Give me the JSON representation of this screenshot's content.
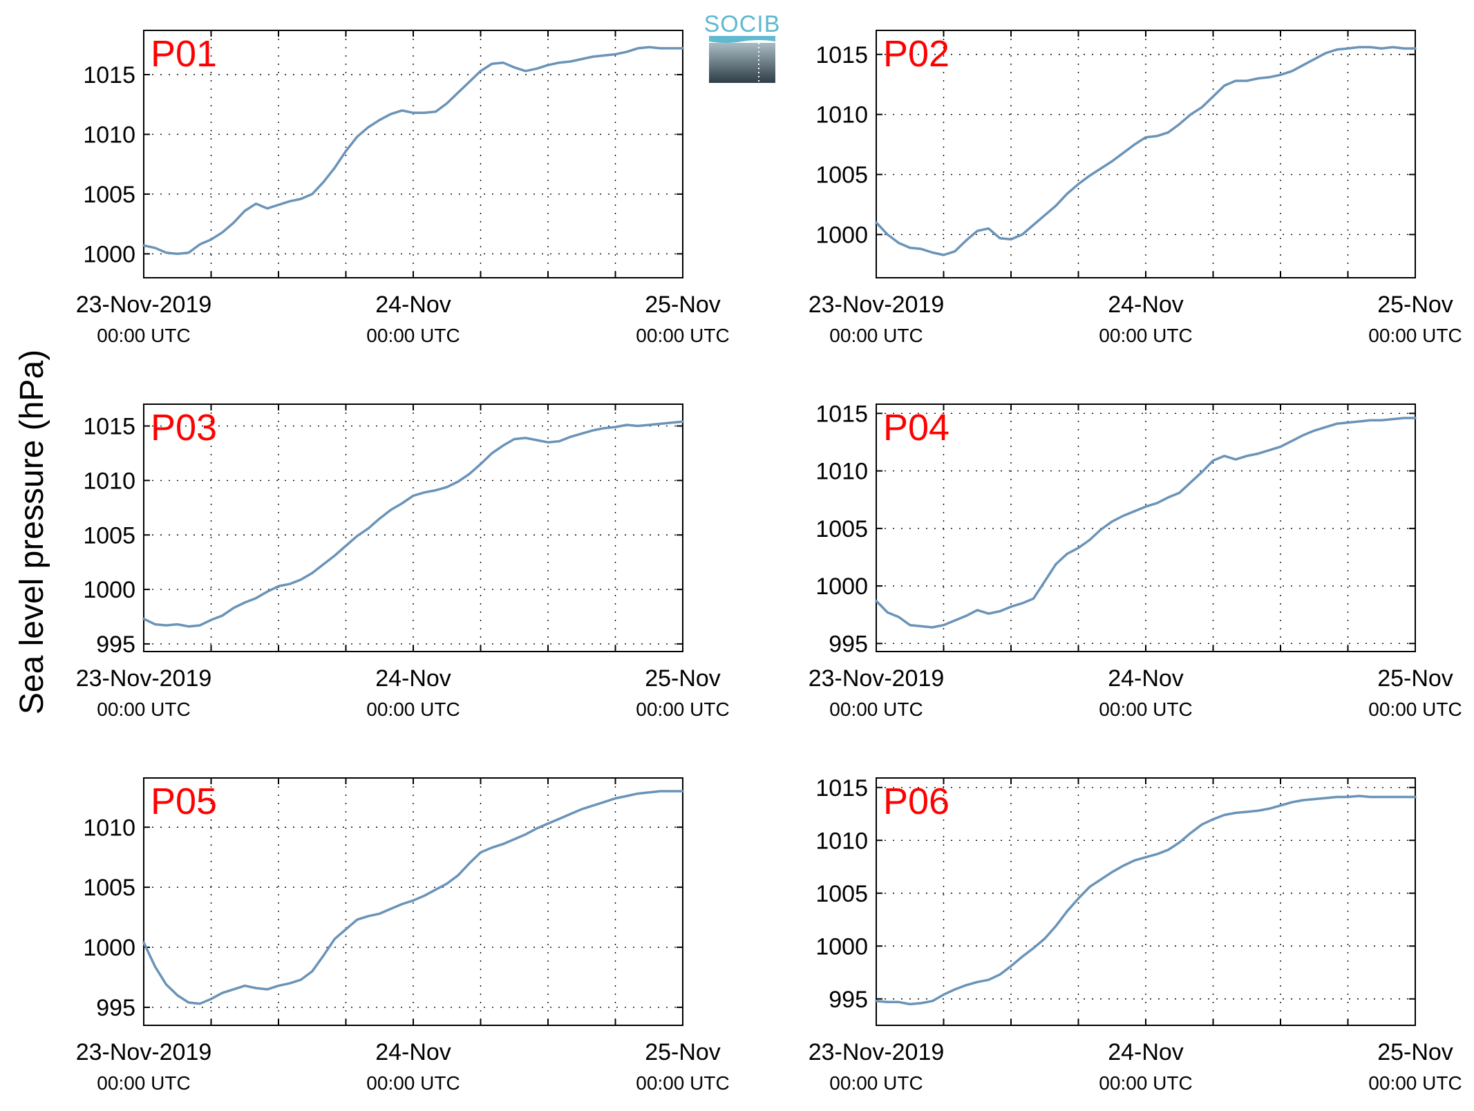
{
  "figure": {
    "ylabel": "Sea level pressure (hPa)",
    "logo_text": "SOCIB",
    "colors": {
      "line": "#6a93b8",
      "panel_label": "#ff0000",
      "axes": "#000000",
      "grid": "#000000"
    }
  },
  "chart_data": [
    {
      "type": "line",
      "panel_label": "P01",
      "grid": "dotted",
      "xlim": [
        "2019-11-23 00:00",
        "2019-11-25 00:00"
      ],
      "xticks": [
        {
          "label": "23-Nov-2019",
          "sublabel": "00:00 UTC",
          "value": 0
        },
        {
          "label": "24-Nov",
          "sublabel": "00:00 UTC",
          "value": 24
        },
        {
          "label": "25-Nov",
          "sublabel": "00:00 UTC",
          "value": 48
        }
      ],
      "ylim": [
        998,
        1018.7
      ],
      "yticks": [
        1000,
        1005,
        1010,
        1015
      ],
      "series": [
        {
          "x": [
            0,
            1,
            2,
            3,
            4,
            5,
            6,
            7,
            8,
            9,
            10,
            11,
            12,
            13,
            14,
            15,
            16,
            17,
            18,
            19,
            20,
            21,
            22,
            23,
            24,
            25,
            26,
            27,
            28,
            29,
            30,
            31,
            32,
            33,
            34,
            35,
            36,
            37,
            38,
            39,
            40,
            41,
            42,
            43,
            44,
            45,
            46,
            47,
            48
          ],
          "y": [
            1000.7,
            1000.5,
            1000.1,
            1000.0,
            1000.1,
            1000.8,
            1001.2,
            1001.8,
            1002.6,
            1003.6,
            1004.2,
            1003.8,
            1004.1,
            1004.4,
            1004.6,
            1005.0,
            1006.0,
            1007.2,
            1008.6,
            1009.8,
            1010.6,
            1011.2,
            1011.7,
            1012.0,
            1011.8,
            1011.8,
            1011.9,
            1012.6,
            1013.5,
            1014.4,
            1015.3,
            1015.9,
            1016.0,
            1015.6,
            1015.3,
            1015.5,
            1015.8,
            1016.0,
            1016.1,
            1016.3,
            1016.5,
            1016.6,
            1016.7,
            1016.9,
            1017.2,
            1017.3,
            1017.2,
            1017.2,
            1017.2
          ]
        }
      ]
    },
    {
      "type": "line",
      "panel_label": "P02",
      "grid": "dotted",
      "xlim": [
        "2019-11-23 00:00",
        "2019-11-25 00:00"
      ],
      "xticks": [
        {
          "label": "23-Nov-2019",
          "sublabel": "00:00 UTC",
          "value": 0
        },
        {
          "label": "24-Nov",
          "sublabel": "00:00 UTC",
          "value": 24
        },
        {
          "label": "25-Nov",
          "sublabel": "00:00 UTC",
          "value": 48
        }
      ],
      "ylim": [
        996.4,
        1017
      ],
      "yticks": [
        1000,
        1005,
        1010,
        1015
      ],
      "series": [
        {
          "x": [
            0,
            1,
            2,
            3,
            4,
            5,
            6,
            7,
            8,
            9,
            10,
            11,
            12,
            13,
            14,
            15,
            16,
            17,
            18,
            19,
            20,
            21,
            22,
            23,
            24,
            25,
            26,
            27,
            28,
            29,
            30,
            31,
            32,
            33,
            34,
            35,
            36,
            37,
            38,
            39,
            40,
            41,
            42,
            43,
            44,
            45,
            46,
            47,
            48
          ],
          "y": [
            1001.0,
            1000.0,
            999.3,
            998.9,
            998.8,
            998.5,
            998.3,
            998.6,
            999.5,
            1000.3,
            1000.5,
            999.7,
            999.6,
            1000.0,
            1000.8,
            1001.6,
            1002.4,
            1003.4,
            1004.2,
            1004.9,
            1005.5,
            1006.1,
            1006.8,
            1007.5,
            1008.1,
            1008.2,
            1008.5,
            1009.2,
            1010.0,
            1010.6,
            1011.5,
            1012.4,
            1012.8,
            1012.8,
            1013.0,
            1013.1,
            1013.3,
            1013.6,
            1014.1,
            1014.6,
            1015.1,
            1015.4,
            1015.5,
            1015.6,
            1015.6,
            1015.5,
            1015.6,
            1015.5,
            1015.5
          ]
        }
      ]
    },
    {
      "type": "line",
      "panel_label": "P03",
      "grid": "dotted",
      "xlim": [
        "2019-11-23 00:00",
        "2019-11-25 00:00"
      ],
      "xticks": [
        {
          "label": "23-Nov-2019",
          "sublabel": "00:00 UTC",
          "value": 0
        },
        {
          "label": "24-Nov",
          "sublabel": "00:00 UTC",
          "value": 24
        },
        {
          "label": "25-Nov",
          "sublabel": "00:00 UTC",
          "value": 48
        }
      ],
      "ylim": [
        994.3,
        1017
      ],
      "yticks": [
        995,
        1000,
        1005,
        1010,
        1015
      ],
      "series": [
        {
          "x": [
            0,
            1,
            2,
            3,
            4,
            5,
            6,
            7,
            8,
            9,
            10,
            11,
            12,
            13,
            14,
            15,
            16,
            17,
            18,
            19,
            20,
            21,
            22,
            23,
            24,
            25,
            26,
            27,
            28,
            29,
            30,
            31,
            32,
            33,
            34,
            35,
            36,
            37,
            38,
            39,
            40,
            41,
            42,
            43,
            44,
            45,
            46,
            47,
            48
          ],
          "y": [
            997.3,
            996.8,
            996.7,
            996.8,
            996.6,
            996.7,
            997.2,
            997.6,
            998.3,
            998.8,
            999.2,
            999.8,
            1000.3,
            1000.5,
            1000.9,
            1001.5,
            1002.3,
            1003.1,
            1004.0,
            1004.9,
            1005.6,
            1006.5,
            1007.3,
            1007.9,
            1008.6,
            1008.9,
            1009.1,
            1009.4,
            1009.9,
            1010.6,
            1011.5,
            1012.5,
            1013.2,
            1013.8,
            1013.9,
            1013.7,
            1013.5,
            1013.6,
            1014.0,
            1014.3,
            1014.6,
            1014.8,
            1014.9,
            1015.1,
            1015.0,
            1015.1,
            1015.2,
            1015.3,
            1015.4
          ]
        }
      ]
    },
    {
      "type": "line",
      "panel_label": "P04",
      "grid": "dotted",
      "xlim": [
        "2019-11-23 00:00",
        "2019-11-25 00:00"
      ],
      "xticks": [
        {
          "label": "23-Nov-2019",
          "sublabel": "00:00 UTC",
          "value": 0
        },
        {
          "label": "24-Nov",
          "sublabel": "00:00 UTC",
          "value": 24
        },
        {
          "label": "25-Nov",
          "sublabel": "00:00 UTC",
          "value": 48
        }
      ],
      "ylim": [
        994.3,
        1015.8
      ],
      "yticks": [
        995,
        1000,
        1005,
        1010,
        1015
      ],
      "series": [
        {
          "x": [
            0,
            1,
            2,
            3,
            4,
            5,
            6,
            7,
            8,
            9,
            10,
            11,
            12,
            13,
            14,
            15,
            16,
            17,
            18,
            19,
            20,
            21,
            22,
            23,
            24,
            25,
            26,
            27,
            28,
            29,
            30,
            31,
            32,
            33,
            34,
            35,
            36,
            37,
            38,
            39,
            40,
            41,
            42,
            43,
            44,
            45,
            46,
            47,
            48
          ],
          "y": [
            998.7,
            997.7,
            997.3,
            996.6,
            996.5,
            996.4,
            996.6,
            997.0,
            997.4,
            997.9,
            997.6,
            997.8,
            998.2,
            998.5,
            998.9,
            1000.4,
            1001.9,
            1002.8,
            1003.3,
            1004.0,
            1004.9,
            1005.6,
            1006.1,
            1006.5,
            1006.9,
            1007.2,
            1007.7,
            1008.1,
            1009.0,
            1009.9,
            1010.9,
            1011.3,
            1011.0,
            1011.3,
            1011.5,
            1011.8,
            1012.1,
            1012.6,
            1013.1,
            1013.5,
            1013.8,
            1014.1,
            1014.2,
            1014.3,
            1014.4,
            1014.4,
            1014.5,
            1014.6,
            1014.6
          ]
        }
      ]
    },
    {
      "type": "line",
      "panel_label": "P05",
      "grid": "dotted",
      "xlim": [
        "2019-11-23 00:00",
        "2019-11-25 00:00"
      ],
      "xticks": [
        {
          "label": "23-Nov-2019",
          "sublabel": "00:00 UTC",
          "value": 0
        },
        {
          "label": "24-Nov",
          "sublabel": "00:00 UTC",
          "value": 24
        },
        {
          "label": "25-Nov",
          "sublabel": "00:00 UTC",
          "value": 48
        }
      ],
      "ylim": [
        993.5,
        1014.1
      ],
      "yticks": [
        995,
        1000,
        1005,
        1010
      ],
      "series": [
        {
          "x": [
            0,
            1,
            2,
            3,
            4,
            5,
            6,
            7,
            8,
            9,
            10,
            11,
            12,
            13,
            14,
            15,
            16,
            17,
            18,
            19,
            20,
            21,
            22,
            23,
            24,
            25,
            26,
            27,
            28,
            29,
            30,
            31,
            32,
            33,
            34,
            35,
            36,
            37,
            38,
            39,
            40,
            41,
            42,
            43,
            44,
            45,
            46,
            47,
            48
          ],
          "y": [
            1000.4,
            998.4,
            996.9,
            996.0,
            995.4,
            995.3,
            995.7,
            996.2,
            996.5,
            996.8,
            996.6,
            996.5,
            996.8,
            997.0,
            997.3,
            998.0,
            999.3,
            1000.7,
            1001.5,
            1002.3,
            1002.6,
            1002.8,
            1003.2,
            1003.6,
            1003.9,
            1004.3,
            1004.8,
            1005.3,
            1006.0,
            1007.0,
            1007.9,
            1008.3,
            1008.6,
            1009.0,
            1009.4,
            1009.9,
            1010.3,
            1010.7,
            1011.1,
            1011.5,
            1011.8,
            1012.1,
            1012.4,
            1012.6,
            1012.8,
            1012.9,
            1013.0,
            1013.0,
            1013.0
          ]
        }
      ]
    },
    {
      "type": "line",
      "panel_label": "P06",
      "grid": "dotted",
      "xlim": [
        "2019-11-23 00:00",
        "2019-11-25 00:00"
      ],
      "xticks": [
        {
          "label": "23-Nov-2019",
          "sublabel": "00:00 UTC",
          "value": 0
        },
        {
          "label": "24-Nov",
          "sublabel": "00:00 UTC",
          "value": 24
        },
        {
          "label": "25-Nov",
          "sublabel": "00:00 UTC",
          "value": 48
        }
      ],
      "ylim": [
        992.5,
        1015.9
      ],
      "yticks": [
        995,
        1000,
        1005,
        1010,
        1015
      ],
      "series": [
        {
          "x": [
            0,
            1,
            2,
            3,
            4,
            5,
            6,
            7,
            8,
            9,
            10,
            11,
            12,
            13,
            14,
            15,
            16,
            17,
            18,
            19,
            20,
            21,
            22,
            23,
            24,
            25,
            26,
            27,
            28,
            29,
            30,
            31,
            32,
            33,
            34,
            35,
            36,
            37,
            38,
            39,
            40,
            41,
            42,
            43,
            44,
            45,
            46,
            47,
            48
          ],
          "y": [
            994.8,
            994.7,
            994.7,
            994.5,
            994.6,
            994.8,
            995.4,
            995.9,
            996.3,
            996.6,
            996.8,
            997.3,
            998.1,
            999.0,
            999.8,
            1000.7,
            1001.9,
            1003.3,
            1004.5,
            1005.6,
            1006.3,
            1007.0,
            1007.6,
            1008.1,
            1008.4,
            1008.7,
            1009.1,
            1009.8,
            1010.7,
            1011.5,
            1012.0,
            1012.4,
            1012.6,
            1012.7,
            1012.8,
            1013.0,
            1013.3,
            1013.6,
            1013.8,
            1013.9,
            1014.0,
            1014.1,
            1014.1,
            1014.2,
            1014.1,
            1014.1,
            1014.1,
            1014.1,
            1014.1
          ]
        }
      ]
    }
  ]
}
